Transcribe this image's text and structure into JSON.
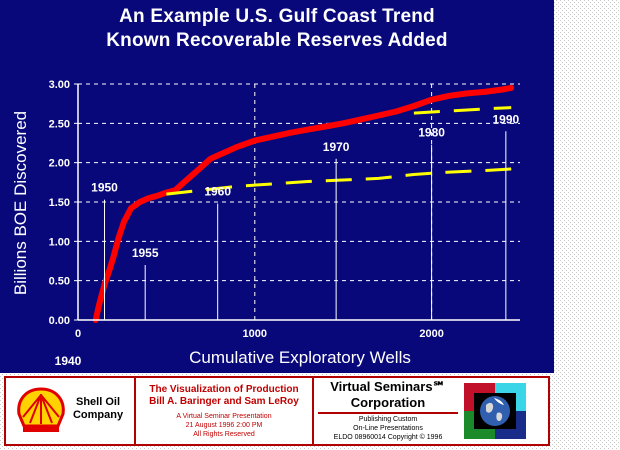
{
  "chart_data": {
    "type": "line",
    "title": "An Example U.S. Gulf Coast Trend",
    "subtitle": "Known Recoverable Reserves Added",
    "xlabel": "Cumulative Exploratory Wells",
    "ylabel": "Billions BOE Discovered",
    "xlim": [
      0,
      2500
    ],
    "ylim": [
      0,
      3.0
    ],
    "x_ticks": [
      "0",
      "1000",
      "2000"
    ],
    "x_origin_label": "1940",
    "y_ticks": [
      "0.00",
      "0.50",
      "1.00",
      "1.50",
      "2.00",
      "2.50",
      "3.00"
    ],
    "grid": "dashed",
    "series": [
      {
        "color": "#ff0000",
        "style": "thick-solid",
        "x": [
          100,
          120,
          150,
          180,
          200,
          230,
          260,
          300,
          350,
          400,
          450,
          500,
          550,
          600,
          650,
          700,
          750,
          800,
          850,
          900,
          1000,
          1100,
          1200,
          1300,
          1400,
          1500,
          1600,
          1700,
          1800,
          1900,
          2000,
          2100,
          2200,
          2300,
          2400,
          2450
        ],
        "y": [
          0.0,
          0.2,
          0.45,
          0.65,
          0.8,
          1.05,
          1.25,
          1.42,
          1.5,
          1.55,
          1.58,
          1.62,
          1.65,
          1.75,
          1.85,
          1.95,
          2.05,
          2.1,
          2.15,
          2.2,
          2.28,
          2.33,
          2.38,
          2.42,
          2.46,
          2.5,
          2.55,
          2.6,
          2.65,
          2.72,
          2.8,
          2.85,
          2.88,
          2.9,
          2.93,
          2.95
        ]
      },
      {
        "color": "#ffff00",
        "style": "dashed",
        "x": [
          500,
          700,
          900,
          1100,
          1300,
          1500,
          1700,
          1900,
          2100,
          2300,
          2450
        ],
        "y": [
          1.6,
          1.65,
          1.7,
          1.73,
          1.76,
          1.78,
          1.8,
          1.85,
          1.88,
          1.9,
          1.92
        ]
      },
      {
        "color": "#ffff00",
        "style": "dashed",
        "x": [
          1900,
          2050,
          2200,
          2350,
          2450
        ],
        "y": [
          2.63,
          2.65,
          2.67,
          2.69,
          2.7
        ]
      }
    ],
    "annotations": [
      {
        "label": "1950",
        "x": 150,
        "y": 1.58
      },
      {
        "label": "1955",
        "x": 380,
        "y": 0.75
      },
      {
        "label": "1960",
        "x": 790,
        "y": 1.53
      },
      {
        "label": "1970",
        "x": 1460,
        "y": 2.1
      },
      {
        "label": "1980",
        "x": 2000,
        "y": 2.28
      },
      {
        "label": "1990",
        "x": 2420,
        "y": 2.45
      }
    ]
  },
  "footer": {
    "company": "Shell Oil Company",
    "company_line1": "Shell Oil",
    "company_line2": "Company",
    "prod_title1": "The Visualization of Production",
    "prod_title2": "Bill A. Baringer and Sam LeRoy",
    "prod_sub1": "A Virtual Seminar Presentation",
    "prod_sub2": "21 August 1996  2:00 PM",
    "prod_sub3": "All Rights Reserved",
    "vs_title1": "Virtual Seminars℠",
    "vs_title2": "Corporation",
    "vs_sub1": "Publishing Custom",
    "vs_sub2": "On-Line Presentations",
    "vs_sub3": "ELDO 08960014 Copyright © 1996"
  },
  "colors": {
    "panel": "#08087a",
    "reserves_line": "#ff0000",
    "trend_line": "#ffff00",
    "border": "#b00000"
  }
}
